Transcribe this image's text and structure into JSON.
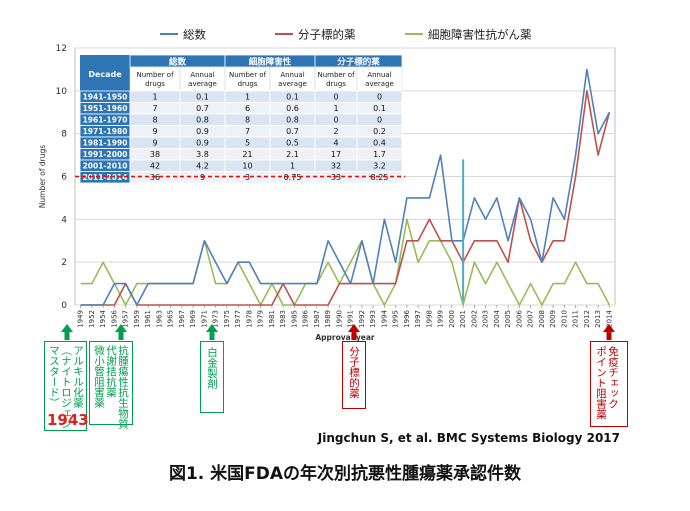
{
  "chart_data": {
    "type": "line",
    "legend": {
      "placement": "top"
    },
    "ylabel": "Number of drugs",
    "xlabel": "Approval year",
    "ylim": [
      0,
      12
    ],
    "yticks": [
      0,
      2,
      4,
      6,
      8,
      10,
      12
    ],
    "x": [
      "1949",
      "1952",
      "1954",
      "1956",
      "1957",
      "1959",
      "1961",
      "1963",
      "1965",
      "1967",
      "1969",
      "1971",
      "1973",
      "1975",
      "1977",
      "1978",
      "1979",
      "1981",
      "1983",
      "1985",
      "1986",
      "1987",
      "1989",
      "1990",
      "1991",
      "1992",
      "1993",
      "1994",
      "1995",
      "1996",
      "1997",
      "1998",
      "1999",
      "2000",
      "2001",
      "2002",
      "2003",
      "2004",
      "2005",
      "2006",
      "2007",
      "2008",
      "2009",
      "2010",
      "2011",
      "2012",
      "2013",
      "2014"
    ],
    "series": [
      {
        "name": "総数",
        "color": "#4f81bd",
        "values": [
          0,
          0,
          0,
          1,
          1,
          0,
          1,
          1,
          1,
          1,
          1,
          3,
          2,
          1,
          2,
          2,
          1,
          1,
          1,
          1,
          1,
          1,
          3,
          2,
          1,
          3,
          1,
          4,
          2,
          5,
          5,
          5,
          7,
          3,
          3,
          5,
          4,
          5,
          3,
          5,
          4,
          2,
          5,
          4,
          7,
          11,
          8,
          9
        ]
      },
      {
        "name": "分子標的薬",
        "color": "#c0504d",
        "values": [
          0,
          0,
          0,
          0,
          1,
          0,
          0,
          0,
          0,
          0,
          0,
          0,
          0,
          0,
          0,
          0,
          0,
          0,
          1,
          0,
          0,
          0,
          0,
          1,
          1,
          1,
          1,
          1,
          1,
          3,
          3,
          4,
          3,
          3,
          2,
          3,
          3,
          3,
          2,
          5,
          3,
          2,
          3,
          3,
          6,
          10,
          7,
          9
        ]
      },
      {
        "name": "細胞障害性抗がん薬",
        "color": "#9bbb59",
        "values": [
          1,
          1,
          2,
          1,
          0,
          1,
          1,
          1,
          1,
          1,
          1,
          3,
          1,
          1,
          2,
          1,
          0,
          1,
          0,
          0,
          1,
          1,
          2,
          1,
          2,
          3,
          1,
          0,
          1,
          4,
          2,
          3,
          3,
          2,
          0,
          2,
          1,
          2,
          1,
          0,
          1,
          0,
          1,
          1,
          2,
          1,
          1,
          0
        ]
      }
    ],
    "dashed_line_value": 6,
    "dashed_line_color": "#ff0000",
    "vertical_marker": {
      "x": "2001",
      "ymax": 6.8,
      "color": "#4bacc6"
    }
  },
  "table": {
    "group_headers": [
      "総数",
      "細胞障害性",
      "分子標的薬"
    ],
    "decade_header": "Decade",
    "sub_headers": [
      "Number of drugs",
      "Annual average",
      "Number of drugs",
      "Annual average",
      "Number of drugs",
      "Annual average"
    ],
    "rows": [
      [
        "1941-1950",
        "1",
        "0.1",
        "1",
        "0.1",
        "0",
        "0"
      ],
      [
        "1951-1960",
        "7",
        "0.7",
        "6",
        "0.6",
        "1",
        "0.1"
      ],
      [
        "1961-1970",
        "8",
        "0.8",
        "8",
        "0.8",
        "0",
        "0"
      ],
      [
        "1971-1980",
        "9",
        "0.9",
        "7",
        "0.7",
        "2",
        "0.2"
      ],
      [
        "1981-1990",
        "9",
        "0.9",
        "5",
        "0.5",
        "4",
        "0.4"
      ],
      [
        "1991-2000",
        "38",
        "3.8",
        "21",
        "2.1",
        "17",
        "1.7"
      ],
      [
        "2001-2010",
        "42",
        "4.2",
        "10",
        "1",
        "32",
        "3.2"
      ],
      [
        "2011-2014",
        "36",
        "9",
        "3",
        "0.75",
        "33",
        "8.25"
      ]
    ]
  },
  "annotations": [
    {
      "id": "alkyl",
      "text": "アルキル化薬\n（ナイトロジェン\nマスタード）",
      "color": "#00a050",
      "year": "1943"
    },
    {
      "id": "anti",
      "text": "抗腫瘍性抗生物質\n代謝拮抗薬\n微小管阻害薬",
      "color": "#00a050"
    },
    {
      "id": "platinum",
      "text": "白金製剤",
      "color": "#00a050"
    },
    {
      "id": "molecular",
      "text": "分子標的薬",
      "color": "#c00000"
    },
    {
      "id": "checkpoint",
      "text": "免疫チェック\nポイント阻害薬",
      "color": "#c00000"
    }
  ],
  "source": "Jingchun S, et al. BMC Systems Biology 2017",
  "caption": "図1. 米国FDAの年次別抗悪性腫瘍薬承認件数"
}
